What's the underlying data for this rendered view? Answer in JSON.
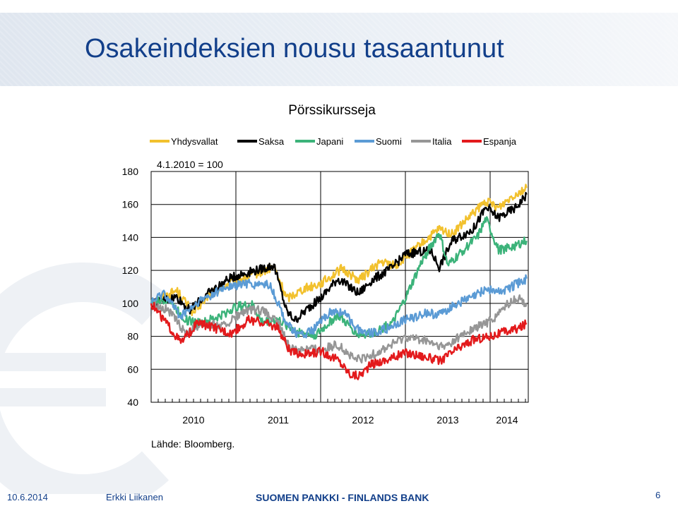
{
  "slide": {
    "title": "Osakeindeksien nousu tasaantunut"
  },
  "footer": {
    "date": "10.6.2014",
    "author": "Erkki Liikanen",
    "bank": "SUOMEN PANKKI - FINLANDS BANK",
    "page": "6"
  },
  "colors": {
    "title": "#123f8a",
    "Yhdysvallat": "#f2c12e",
    "Saksa": "#000000",
    "Japani": "#3cb37a",
    "Suomi": "#5b9bd5",
    "Italia": "#969696",
    "Espanja": "#e31a1c"
  },
  "chart_data": {
    "type": "line",
    "title": "Pörssikursseja",
    "subtitle": "4.1.2010 = 100",
    "source": "Lähde: Bloomberg.",
    "legend_position": "top",
    "ylim": [
      40,
      180
    ],
    "yticks": [
      "40",
      "60",
      "80",
      "100",
      "120",
      "140",
      "160",
      "180"
    ],
    "xlim": [
      2010.0,
      2014.45
    ],
    "xticks": [
      {
        "label": "2010",
        "x": 2010.5
      },
      {
        "label": "2011",
        "x": 2011.5
      },
      {
        "label": "2012",
        "x": 2012.5
      },
      {
        "label": "2013",
        "x": 2013.5
      },
      {
        "label": "2014",
        "x": 2014.2
      }
    ],
    "grid": true,
    "series": [
      {
        "name": "Yhdysvallat",
        "color": "#f2c12e",
        "points": [
          [
            2010.0,
            100
          ],
          [
            2010.3,
            108
          ],
          [
            2010.5,
            94
          ],
          [
            2010.7,
            106
          ],
          [
            2010.95,
            113
          ],
          [
            2011.3,
            119
          ],
          [
            2011.45,
            122
          ],
          [
            2011.6,
            103
          ],
          [
            2011.8,
            109
          ],
          [
            2012.0,
            112
          ],
          [
            2012.25,
            121
          ],
          [
            2012.45,
            114
          ],
          [
            2012.7,
            125
          ],
          [
            2012.9,
            123
          ],
          [
            2013.0,
            128
          ],
          [
            2013.4,
            145
          ],
          [
            2013.55,
            142
          ],
          [
            2013.75,
            152
          ],
          [
            2013.95,
            162
          ],
          [
            2014.1,
            158
          ],
          [
            2014.25,
            165
          ],
          [
            2014.43,
            170
          ]
        ]
      },
      {
        "name": "Saksa",
        "color": "#000000",
        "points": [
          [
            2010.0,
            100
          ],
          [
            2010.3,
            104
          ],
          [
            2010.45,
            96
          ],
          [
            2010.7,
            107
          ],
          [
            2010.95,
            116
          ],
          [
            2011.3,
            121
          ],
          [
            2011.45,
            123
          ],
          [
            2011.6,
            95
          ],
          [
            2011.7,
            90
          ],
          [
            2011.85,
            97
          ],
          [
            2012.0,
            103
          ],
          [
            2012.2,
            115
          ],
          [
            2012.45,
            106
          ],
          [
            2012.6,
            114
          ],
          [
            2012.85,
            122
          ],
          [
            2013.0,
            130
          ],
          [
            2013.3,
            132
          ],
          [
            2013.4,
            122
          ],
          [
            2013.55,
            138
          ],
          [
            2013.8,
            145
          ],
          [
            2013.95,
            158
          ],
          [
            2014.1,
            152
          ],
          [
            2014.3,
            158
          ],
          [
            2014.43,
            166
          ]
        ]
      },
      {
        "name": "Japani",
        "color": "#3cb37a",
        "points": [
          [
            2010.0,
            100
          ],
          [
            2010.2,
            103
          ],
          [
            2010.4,
            90
          ],
          [
            2010.6,
            88
          ],
          [
            2010.8,
            92
          ],
          [
            2011.0,
            98
          ],
          [
            2011.2,
            99
          ],
          [
            2011.3,
            89
          ],
          [
            2011.5,
            90
          ],
          [
            2011.75,
            82
          ],
          [
            2011.95,
            81
          ],
          [
            2012.2,
            93
          ],
          [
            2012.45,
            81
          ],
          [
            2012.6,
            82
          ],
          [
            2012.85,
            88
          ],
          [
            2013.0,
            103
          ],
          [
            2013.2,
            126
          ],
          [
            2013.4,
            143
          ],
          [
            2013.5,
            123
          ],
          [
            2013.7,
            133
          ],
          [
            2013.85,
            140
          ],
          [
            2013.95,
            151
          ],
          [
            2014.0,
            145
          ],
          [
            2014.1,
            132
          ],
          [
            2014.3,
            135
          ],
          [
            2014.43,
            138
          ]
        ]
      },
      {
        "name": "Suomi",
        "color": "#5b9bd5",
        "points": [
          [
            2010.0,
            100
          ],
          [
            2010.15,
            107
          ],
          [
            2010.35,
            92
          ],
          [
            2010.6,
            102
          ],
          [
            2010.9,
            110
          ],
          [
            2011.1,
            112
          ],
          [
            2011.4,
            111
          ],
          [
            2011.6,
            88
          ],
          [
            2011.75,
            80
          ],
          [
            2011.9,
            83
          ],
          [
            2012.1,
            94
          ],
          [
            2012.25,
            95
          ],
          [
            2012.45,
            84
          ],
          [
            2012.6,
            82
          ],
          [
            2012.8,
            85
          ],
          [
            2013.0,
            90
          ],
          [
            2013.25,
            94
          ],
          [
            2013.4,
            93
          ],
          [
            2013.6,
            100
          ],
          [
            2013.8,
            104
          ],
          [
            2013.95,
            109
          ],
          [
            2014.1,
            107
          ],
          [
            2014.25,
            110
          ],
          [
            2014.43,
            115
          ]
        ]
      },
      {
        "name": "Italia",
        "color": "#969696",
        "points": [
          [
            2010.0,
            100
          ],
          [
            2010.2,
            96
          ],
          [
            2010.4,
            82
          ],
          [
            2010.6,
            88
          ],
          [
            2010.85,
            86
          ],
          [
            2011.1,
            95
          ],
          [
            2011.3,
            96
          ],
          [
            2011.5,
            88
          ],
          [
            2011.65,
            72
          ],
          [
            2011.8,
            73
          ],
          [
            2012.0,
            72
          ],
          [
            2012.2,
            75
          ],
          [
            2012.4,
            66
          ],
          [
            2012.55,
            67
          ],
          [
            2012.8,
            74
          ],
          [
            2013.0,
            80
          ],
          [
            2013.2,
            78
          ],
          [
            2013.45,
            73
          ],
          [
            2013.65,
            80
          ],
          [
            2013.85,
            86
          ],
          [
            2014.0,
            89
          ],
          [
            2014.2,
            99
          ],
          [
            2014.32,
            103
          ],
          [
            2014.43,
            100
          ]
        ]
      },
      {
        "name": "Espanja",
        "color": "#e31a1c",
        "points": [
          [
            2010.0,
            100
          ],
          [
            2010.15,
            90
          ],
          [
            2010.35,
            76
          ],
          [
            2010.55,
            88
          ],
          [
            2010.75,
            85
          ],
          [
            2010.95,
            82
          ],
          [
            2011.15,
            90
          ],
          [
            2011.35,
            88
          ],
          [
            2011.5,
            85
          ],
          [
            2011.65,
            70
          ],
          [
            2011.85,
            69
          ],
          [
            2012.0,
            71
          ],
          [
            2012.2,
            66
          ],
          [
            2012.35,
            57
          ],
          [
            2012.45,
            56
          ],
          [
            2012.6,
            63
          ],
          [
            2012.8,
            66
          ],
          [
            2013.0,
            70
          ],
          [
            2013.2,
            68
          ],
          [
            2013.4,
            65
          ],
          [
            2013.6,
            72
          ],
          [
            2013.8,
            78
          ],
          [
            2014.0,
            80
          ],
          [
            2014.2,
            83
          ],
          [
            2014.35,
            85
          ],
          [
            2014.43,
            88
          ]
        ]
      }
    ]
  }
}
